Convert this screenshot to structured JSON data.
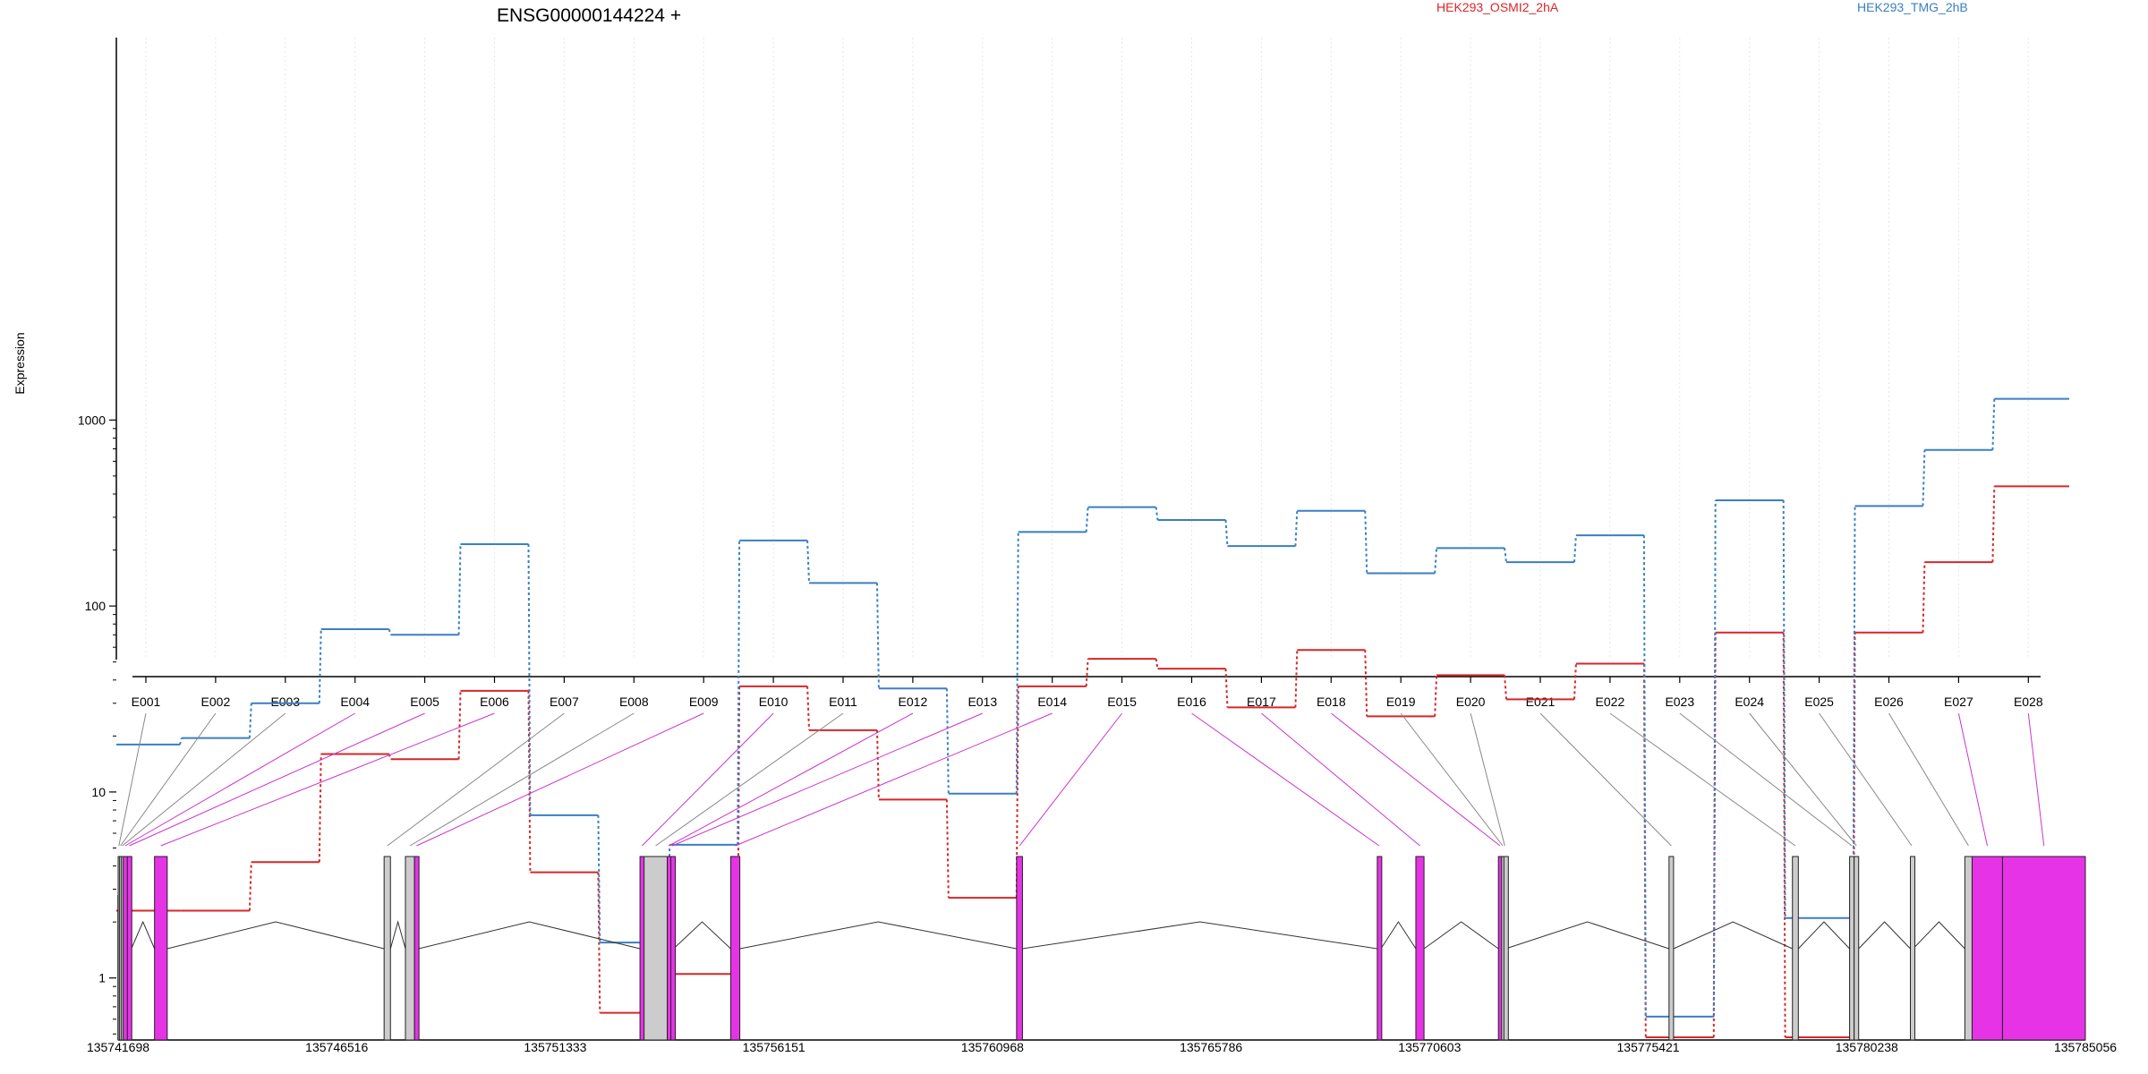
{
  "chart_data": {
    "type": "line",
    "title": "ENSG00000144224 +",
    "xlabel": "",
    "ylabel": "Expression",
    "yscale": "log",
    "ylim": [
      0.5,
      1600
    ],
    "yticks": [
      1,
      10,
      100,
      1000
    ],
    "grid": "vertical dotted at each exon",
    "legend_placement": "top",
    "categories": [
      "E001",
      "E002",
      "E003",
      "E004",
      "E005",
      "E006",
      "E007",
      "E008",
      "E009",
      "E010",
      "E011",
      "E012",
      "E013",
      "E014",
      "E015",
      "E016",
      "E017",
      "E018",
      "E019",
      "E020",
      "E021",
      "E022",
      "E023",
      "E024",
      "E025",
      "E026",
      "E027",
      "E028"
    ],
    "series": [
      {
        "name": "HEK293_OSMI2_2hA",
        "color": "#d62728",
        "values": [
          2.3,
          2.3,
          4.2,
          16,
          15,
          35,
          3.7,
          0.65,
          1.05,
          37,
          21.5,
          9.1,
          2.7,
          37,
          52,
          46,
          28.5,
          58,
          25.5,
          42.5,
          31.5,
          49,
          0.48,
          72,
          0.48,
          72,
          172,
          440
        ]
      },
      {
        "name": "HEK293_TMG_2hB",
        "color": "#3a7fc3",
        "values": [
          18,
          19.5,
          30,
          75,
          70,
          215,
          7.5,
          1.55,
          5.2,
          225,
          133,
          36,
          9.8,
          250,
          340,
          290,
          210,
          325,
          150,
          205,
          172,
          240,
          0.62,
          370,
          2.1,
          345,
          690,
          1300
        ]
      }
    ],
    "gene_model": {
      "coordinate_ticks": [
        "135741698",
        "135746516",
        "135751333",
        "135756151",
        "135760968",
        "135765786",
        "135770603",
        "135775421",
        "135780238",
        "135785056"
      ],
      "highlight_color": "#e633e6",
      "exon_color": "#cccccc",
      "exons": [
        {
          "id": "E001",
          "start": 135741698,
          "end": 135741730,
          "highlight": false
        },
        {
          "id": "E002",
          "start": 135741730,
          "end": 135741770,
          "highlight": false
        },
        {
          "id": "E003",
          "start": 135741770,
          "end": 135741810,
          "highlight": false
        },
        {
          "id": "E004",
          "start": 135741810,
          "end": 135741900,
          "highlight": true
        },
        {
          "id": "E005",
          "start": 135741900,
          "end": 135741990,
          "highlight": true
        },
        {
          "id": "E006",
          "start": 135742500,
          "end": 135742780,
          "highlight": true
        },
        {
          "id": "E007",
          "start": 135747560,
          "end": 135747700,
          "highlight": false
        },
        {
          "id": "E008",
          "start": 135748030,
          "end": 135748230,
          "highlight": false
        },
        {
          "id": "E009",
          "start": 135748230,
          "end": 135748320,
          "highlight": true
        },
        {
          "id": "E010",
          "start": 135753200,
          "end": 135753290,
          "highlight": true
        },
        {
          "id": "E011",
          "start": 135753290,
          "end": 135753800,
          "highlight": false
        },
        {
          "id": "E012",
          "start": 135753800,
          "end": 135753880,
          "highlight": true
        },
        {
          "id": "E013",
          "start": 135753880,
          "end": 135753940,
          "highlight": true
        },
        {
          "id": "E014",
          "start": 135755200,
          "end": 135755400,
          "highlight": true
        },
        {
          "id": "E015",
          "start": 135761500,
          "end": 135761630,
          "highlight": true
        },
        {
          "id": "E016",
          "start": 135769450,
          "end": 135769530,
          "highlight": true
        },
        {
          "id": "E017",
          "start": 135770300,
          "end": 135770480,
          "highlight": true
        },
        {
          "id": "E018",
          "start": 135772120,
          "end": 135772190,
          "highlight": true
        },
        {
          "id": "E019",
          "start": 135772190,
          "end": 135772240,
          "highlight": false
        },
        {
          "id": "E020",
          "start": 135772240,
          "end": 135772280,
          "highlight": false
        },
        {
          "id": "E021",
          "start": 135775880,
          "end": 135775980,
          "highlight": false
        },
        {
          "id": "E022",
          "start": 135778600,
          "end": 135778730,
          "highlight": false
        },
        {
          "id": "E023",
          "start": 135779860,
          "end": 135779960,
          "highlight": false
        },
        {
          "id": "E024",
          "start": 135779960,
          "end": 135780060,
          "highlight": false
        },
        {
          "id": "E025",
          "start": 135781200,
          "end": 135781260,
          "highlight": false
        },
        {
          "id": "E026",
          "start": 135782400,
          "end": 135782560,
          "highlight": false
        },
        {
          "id": "E027",
          "start": 135782560,
          "end": 135783230,
          "highlight": true
        },
        {
          "id": "E028",
          "start": 135783230,
          "end": 135785056,
          "highlight": true
        }
      ]
    }
  }
}
